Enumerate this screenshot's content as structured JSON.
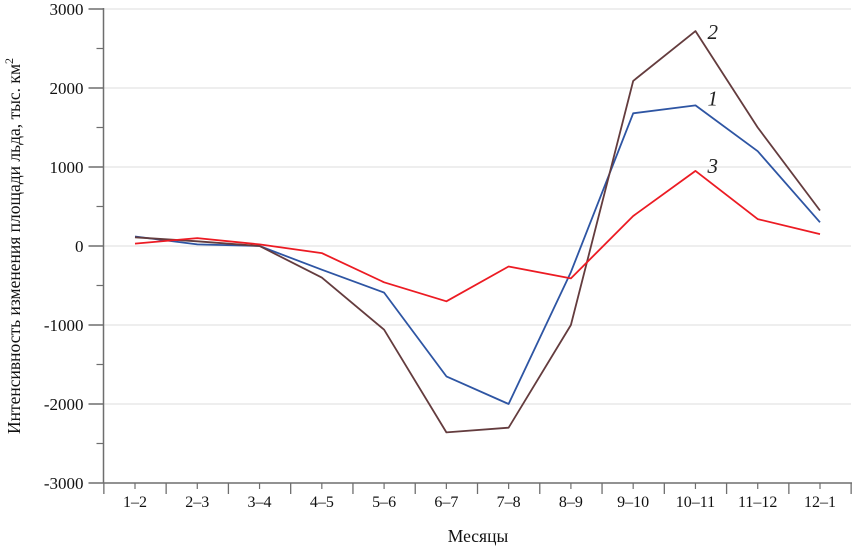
{
  "figure": {
    "background": "#ffffff"
  },
  "chart_data": {
    "type": "line",
    "title": "",
    "xlabel": "Месяцы",
    "ylabel": "Интенсивность изменения площади льда, тыс. км",
    "ylabel_superscript": "2",
    "categories": [
      "1–2",
      "2–3",
      "3–4",
      "4–5",
      "5–6",
      "6–7",
      "7–8",
      "8–9",
      "9–10",
      "10–11",
      "11–12",
      "12–1"
    ],
    "series": [
      {
        "name": "1",
        "color": "#2e55a3",
        "values": [
          120,
          20,
          0,
          -300,
          -590,
          -1650,
          -2000,
          -330,
          1680,
          1780,
          1200,
          300
        ]
      },
      {
        "name": "2",
        "color": "#643c3e",
        "values": [
          110,
          60,
          0,
          -400,
          -1060,
          -2360,
          -2300,
          -1000,
          2090,
          2720,
          1500,
          450
        ]
      },
      {
        "name": "3",
        "color": "#ec1b23",
        "values": [
          30,
          100,
          20,
          -90,
          -460,
          -700,
          -260,
          -410,
          380,
          950,
          340,
          150
        ]
      }
    ],
    "ylim": [
      -3000,
      3000
    ],
    "ytick_step": 1000,
    "yminor_step": 500,
    "yticks": [
      "3000",
      "2000",
      "1000",
      "0",
      "-1000",
      "-2000",
      "-3000"
    ],
    "grid": true,
    "legend": "inline-numbers",
    "inline_label_category": "10–11",
    "axis_color": "#6e6e6e",
    "grid_color": "#dcdcdc",
    "text_color": "#111111"
  }
}
